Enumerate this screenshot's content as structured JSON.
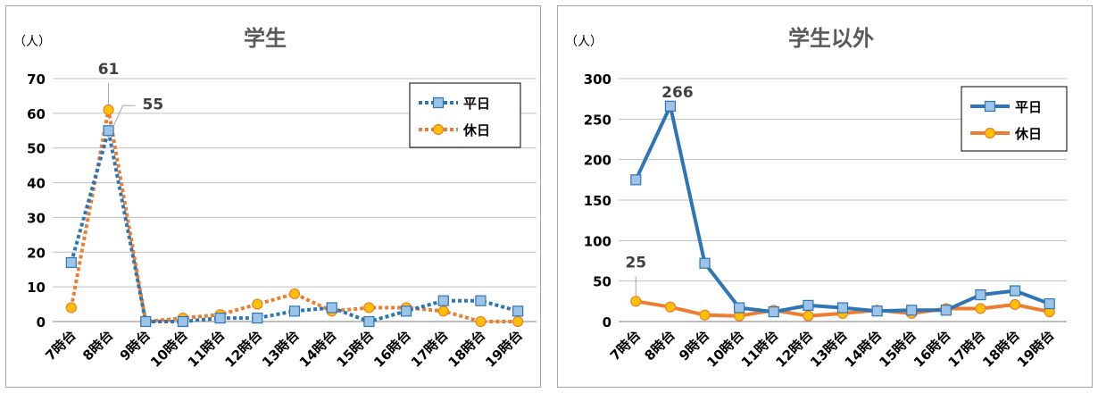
{
  "chart_data": [
    {
      "type": "line",
      "title": "学生",
      "unit_label": "（人）",
      "ylim": [
        0,
        70
      ],
      "y_ticks": [
        0,
        10,
        20,
        30,
        40,
        50,
        60,
        70
      ],
      "grid": true,
      "legend_position": "top-right",
      "categories": [
        "7時台",
        "8時台",
        "9時台",
        "10時台",
        "11時台",
        "12時台",
        "13時台",
        "14時台",
        "15時台",
        "16時台",
        "17時台",
        "18時台",
        "19時台"
      ],
      "series": [
        {
          "name": "平日",
          "color": "#2e75b6",
          "line_style": "dotted",
          "marker": "square",
          "marker_fill": "#9dc3e6",
          "values": [
            17,
            55,
            0,
            0,
            1,
            1,
            3,
            4,
            0,
            3,
            6,
            6,
            3
          ]
        },
        {
          "name": "休日",
          "color": "#ed7d31",
          "line_style": "dotted",
          "marker": "circle",
          "marker_fill": "#ffc000",
          "values": [
            4,
            61,
            0,
            1,
            2,
            5,
            8,
            3,
            4,
            4,
            3,
            0,
            0
          ]
        }
      ],
      "annotations": [
        {
          "text": "61",
          "series": 1,
          "index": 1
        },
        {
          "text": "55",
          "series": 0,
          "index": 1
        }
      ]
    },
    {
      "type": "line",
      "title": "学生以外",
      "unit_label": "（人）",
      "ylim": [
        0,
        300
      ],
      "y_ticks": [
        0,
        50,
        100,
        150,
        200,
        250,
        300
      ],
      "grid": true,
      "legend_position": "top-right",
      "categories": [
        "7時台",
        "8時台",
        "9時台",
        "10時台",
        "11時台",
        "12時台",
        "13時台",
        "14時台",
        "15時台",
        "16時台",
        "17時台",
        "18時台",
        "19時台"
      ],
      "series": [
        {
          "name": "平日",
          "color": "#2e75b6",
          "line_style": "solid",
          "marker": "square",
          "marker_fill": "#9dc3e6",
          "values": [
            175,
            266,
            72,
            17,
            12,
            20,
            17,
            13,
            14,
            14,
            33,
            38,
            22
          ]
        },
        {
          "name": "休日",
          "color": "#ed7d31",
          "line_style": "solid",
          "marker": "circle",
          "marker_fill": "#ffc000",
          "values": [
            25,
            18,
            8,
            7,
            14,
            7,
            10,
            14,
            10,
            16,
            16,
            21,
            12
          ]
        }
      ],
      "annotations": [
        {
          "text": "266",
          "series": 0,
          "index": 1
        },
        {
          "text": "25",
          "series": 1,
          "index": 0
        }
      ]
    }
  ]
}
